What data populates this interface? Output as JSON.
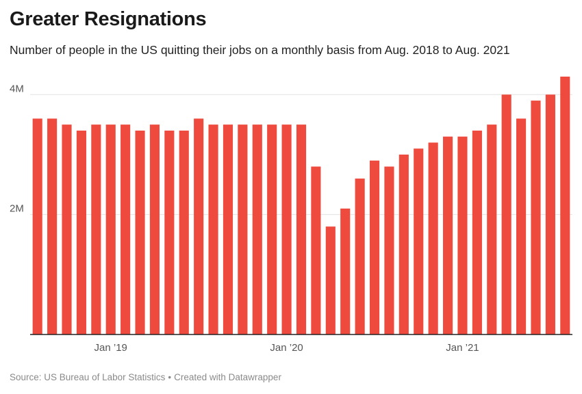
{
  "header": {
    "title": "Greater Resignations",
    "subtitle": "Number of people in the US quitting their jobs on a monthly basis from Aug. 2018 to Aug. 2021"
  },
  "footer": {
    "source": "Source: US Bureau of Labor Statistics",
    "separator": "•",
    "credit": "Created with Datawrapper"
  },
  "colors": {
    "bar": "#ee4b3e",
    "grid": "#e2e2e2",
    "axis": "#222222",
    "tick_label": "#555555"
  },
  "chart_data": {
    "type": "bar",
    "title": "Greater Resignations",
    "subtitle": "Number of people in the US quitting their jobs on a monthly basis from Aug. 2018 to Aug. 2021",
    "xlabel": "",
    "ylabel": "",
    "ylim": [
      0,
      4300000
    ],
    "yticks": [
      {
        "value": 2000000,
        "label": "2M"
      },
      {
        "value": 4000000,
        "label": "4M"
      }
    ],
    "xticks": [
      {
        "category": "2019-01",
        "label": "Jan ’19"
      },
      {
        "category": "2020-01",
        "label": "Jan ’20"
      },
      {
        "category": "2021-01",
        "label": "Jan ’21"
      }
    ],
    "grid": true,
    "categories": [
      "2018-08",
      "2018-09",
      "2018-10",
      "2018-11",
      "2018-12",
      "2019-01",
      "2019-02",
      "2019-03",
      "2019-04",
      "2019-05",
      "2019-06",
      "2019-07",
      "2019-08",
      "2019-09",
      "2019-10",
      "2019-11",
      "2019-12",
      "2020-01",
      "2020-02",
      "2020-03",
      "2020-04",
      "2020-05",
      "2020-06",
      "2020-07",
      "2020-08",
      "2020-09",
      "2020-10",
      "2020-11",
      "2020-12",
      "2021-01",
      "2021-02",
      "2021-03",
      "2021-04",
      "2021-05",
      "2021-06",
      "2021-07",
      "2021-08"
    ],
    "values": [
      3600000,
      3600000,
      3500000,
      3400000,
      3500000,
      3500000,
      3500000,
      3400000,
      3500000,
      3400000,
      3400000,
      3600000,
      3500000,
      3500000,
      3500000,
      3500000,
      3500000,
      3500000,
      3500000,
      2800000,
      1800000,
      2100000,
      2600000,
      2900000,
      2800000,
      3000000,
      3100000,
      3200000,
      3300000,
      3300000,
      3400000,
      3500000,
      4000000,
      3600000,
      3900000,
      4000000,
      4300000
    ]
  }
}
